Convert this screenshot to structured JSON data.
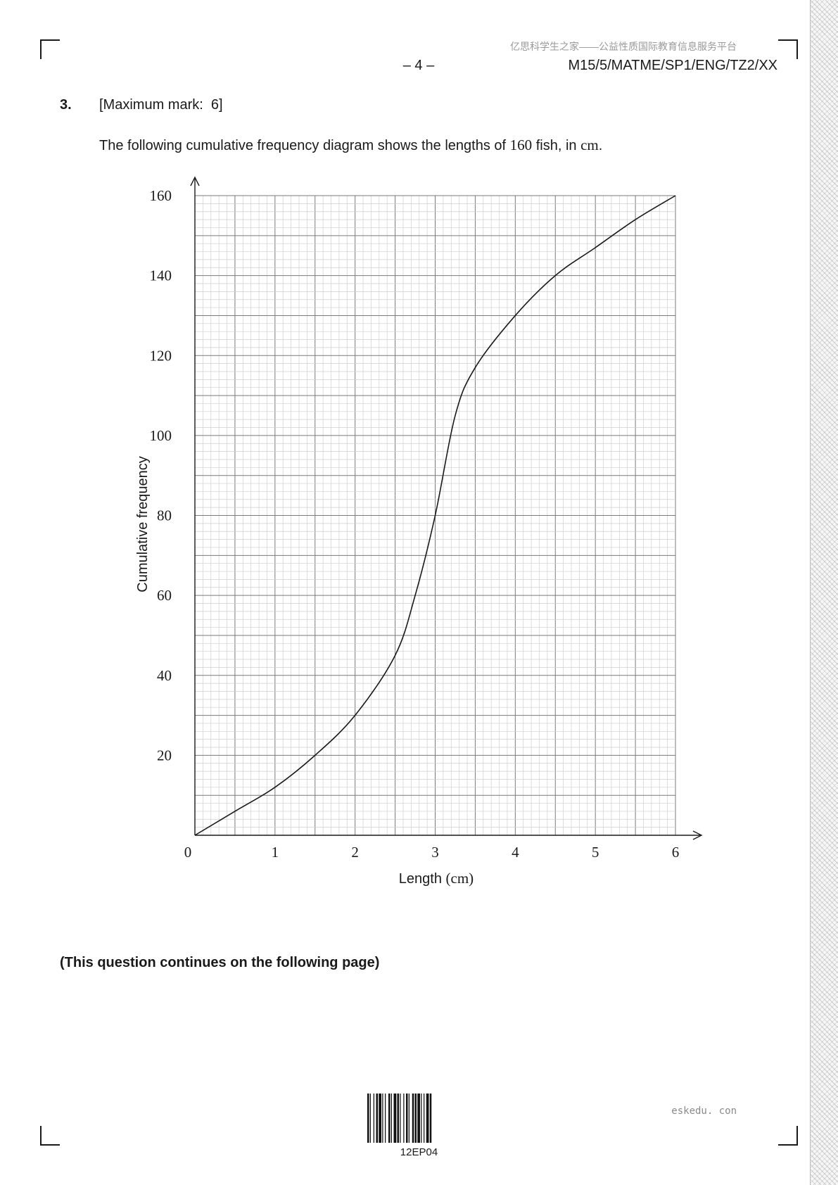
{
  "header": {
    "watermark": "亿思科学生之家——公益性质国际教育信息服务平台",
    "page_number": "– 4 –",
    "paper_code": "M15/5/MATME/SP1/ENG/TZ2/XX"
  },
  "question": {
    "number": "3.",
    "max_mark": "[Maximum mark:  6]",
    "intro_before": "The following cumulative frequency diagram shows the lengths of ",
    "intro_count": "160",
    "intro_middle": " fish, in ",
    "intro_unit": "cm",
    "intro_end": "."
  },
  "chart_data": {
    "type": "line",
    "title": "",
    "xlabel_text": "Length ",
    "xlabel_unit": "(cm)",
    "ylabel": "Cumulative frequency",
    "xlim": [
      0,
      6
    ],
    "ylim": [
      0,
      160
    ],
    "x_ticks": [
      "0",
      "1",
      "2",
      "3",
      "4",
      "5",
      "6"
    ],
    "y_ticks": [
      "20",
      "40",
      "60",
      "80",
      "100",
      "120",
      "140",
      "160"
    ],
    "grid": true,
    "series": [
      {
        "x": [
          0,
          0.5,
          1,
          1.5,
          2,
          2.5,
          2.75,
          3,
          3.25,
          3.5,
          4,
          4.5,
          5,
          5.5,
          6
        ],
        "y": [
          0,
          6,
          12,
          20,
          30,
          45,
          60,
          80,
          105,
          117,
          130,
          140,
          147,
          154,
          160
        ]
      }
    ]
  },
  "footer": {
    "continues": "(This question continues on the following page)",
    "barcode_label": "12EP04",
    "site": "eskedu. con"
  }
}
